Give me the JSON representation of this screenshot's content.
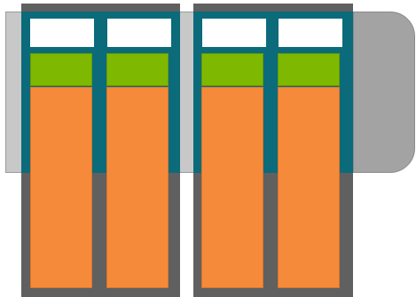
{
  "colors": {
    "background": "#ffffff",
    "frame": "#606060",
    "band": "#0b6b7a",
    "slot": "#ffffff",
    "green": "#7fb800",
    "orange": "#f58b3a",
    "rail": "#c8c8c8",
    "tab": "#a3a3a3"
  },
  "modules": [
    {
      "columns": [
        {
          "slot": "",
          "fill_fraction": 1
        },
        {
          "slot": "",
          "fill_fraction": 1
        }
      ]
    },
    {
      "columns": [
        {
          "slot": "",
          "fill_fraction": 1
        },
        {
          "slot": "",
          "fill_fraction": 1
        }
      ]
    }
  ]
}
